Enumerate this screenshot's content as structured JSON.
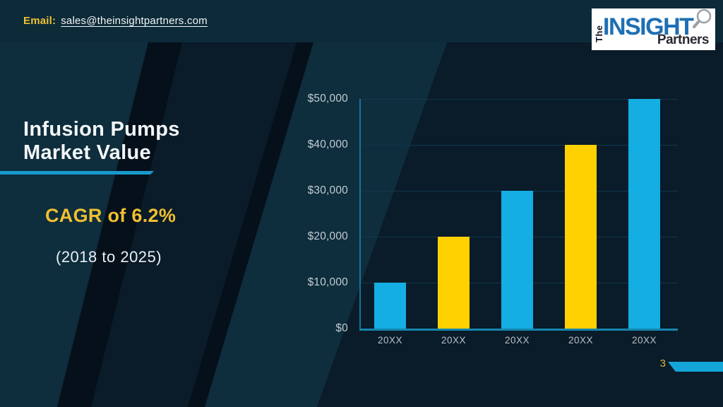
{
  "header": {
    "email_label": "Email:",
    "email_address": "sales@theinsightpartners.com"
  },
  "logo": {
    "word_the": "The",
    "word_insight": "INSIGHT",
    "word_partners": "Partners"
  },
  "slide": {
    "title_line1": "Infusion Pumps",
    "title_line2": "Market Value",
    "cagr_text": "CAGR of 6.2%",
    "period_text": "(2018 to 2025)",
    "page_number": "3"
  },
  "chart_data": {
    "type": "bar",
    "title": "Infusion Pumps Market Value",
    "categories": [
      "20XX",
      "20XX",
      "20XX",
      "20XX",
      "20XX"
    ],
    "values": [
      10000,
      20000,
      30000,
      40000,
      50000
    ],
    "bar_colors": [
      "#14aee2",
      "#ffd100",
      "#14aee2",
      "#ffd100",
      "#14aee2"
    ],
    "y_ticks": [
      {
        "value": 0,
        "label": "$0"
      },
      {
        "value": 10000,
        "label": "$10,000"
      },
      {
        "value": 20000,
        "label": "$20,000"
      },
      {
        "value": 30000,
        "label": "$30,000"
      },
      {
        "value": 40000,
        "label": "$40,000"
      },
      {
        "value": 50000,
        "label": "$50,000"
      }
    ],
    "ylim": [
      0,
      50000
    ],
    "xlabel": "",
    "ylabel": "",
    "grid": true,
    "legend_position": "none"
  },
  "colors": {
    "header_bg": "#0d2a39",
    "slide_bg": "#0a1b29",
    "band_light": "#0e2d3d",
    "band_dark": "#05101b",
    "accent_cyan": "#1899cc",
    "accent_yellow": "#efbf31",
    "bar_cyan": "#14aee2",
    "bar_yellow": "#ffd100",
    "axis_line": "#1586ad",
    "gridline": "#10384d",
    "logo_blue": "#1e6fb4"
  }
}
